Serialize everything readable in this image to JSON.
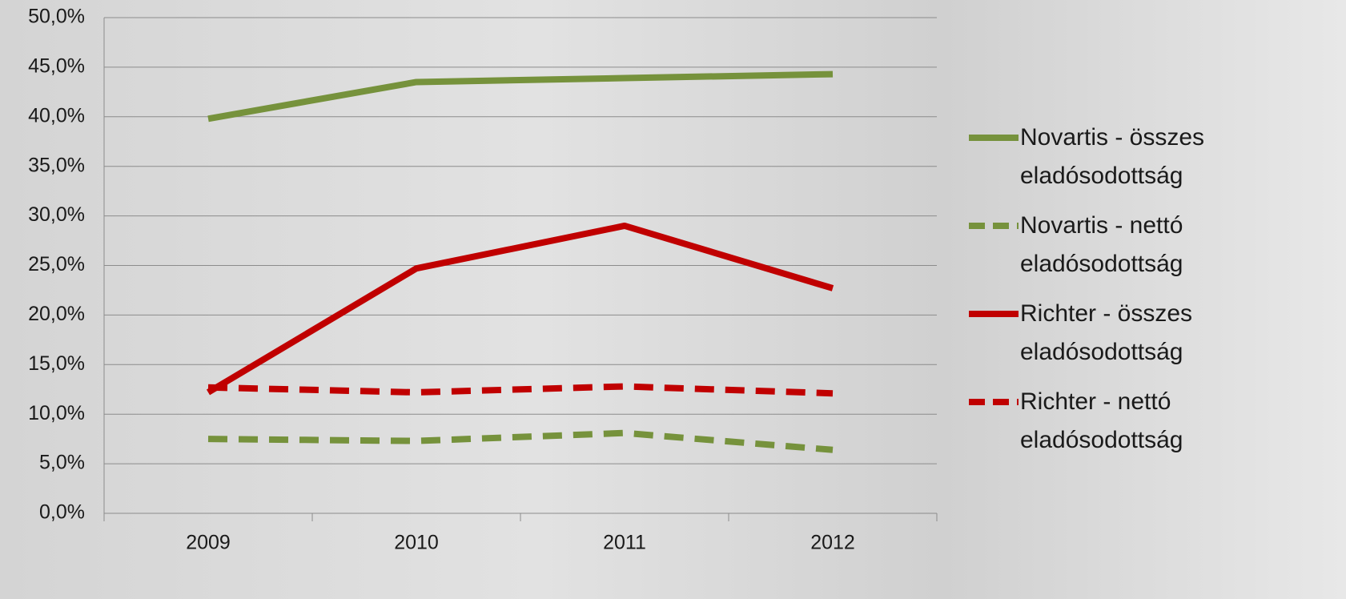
{
  "chart_data": {
    "type": "line",
    "categories": [
      "2009",
      "2010",
      "2011",
      "2012"
    ],
    "series": [
      {
        "name": "Novartis - összes eladósodottság",
        "color": "#76923c",
        "line_style": "solid",
        "values": [
          39.8,
          43.5,
          43.9,
          44.3
        ]
      },
      {
        "name": "Novartis - nettó eladósodottság",
        "color": "#76923c",
        "line_style": "dashed",
        "values": [
          7.5,
          7.3,
          8.1,
          6.4
        ]
      },
      {
        "name": "Richter - összes eladósodottság",
        "color": "#c00000",
        "line_style": "solid",
        "values": [
          12.2,
          24.7,
          29.0,
          22.7
        ]
      },
      {
        "name": "Richter - nettó eladósodottság",
        "color": "#c00000",
        "line_style": "dashed",
        "values": [
          12.7,
          12.2,
          12.8,
          12.1
        ]
      }
    ],
    "ylim": [
      0,
      50
    ],
    "yticks": [
      {
        "value": 0,
        "label": "0,0%"
      },
      {
        "value": 5,
        "label": "5,0%"
      },
      {
        "value": 10,
        "label": "10,0%"
      },
      {
        "value": 15,
        "label": "15,0%"
      },
      {
        "value": 20,
        "label": "20,0%"
      },
      {
        "value": 25,
        "label": "25,0%"
      },
      {
        "value": 30,
        "label": "30,0%"
      },
      {
        "value": 35,
        "label": "35,0%"
      },
      {
        "value": 40,
        "label": "40,0%"
      },
      {
        "value": 45,
        "label": "45,0%"
      },
      {
        "value": 50,
        "label": "50,0%"
      }
    ],
    "grid": true,
    "legend": "right"
  }
}
